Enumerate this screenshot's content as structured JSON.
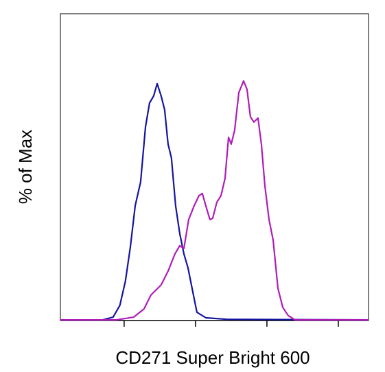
{
  "chart_data": {
    "type": "line",
    "x_label": "CD271 Super Bright 600",
    "y_label": "% of Max",
    "x_scale": "log",
    "xlim": [
      12.8,
      264900
    ],
    "xticks": [
      100,
      1000,
      10000,
      100000
    ],
    "ylim": [
      0,
      100
    ],
    "grid": false,
    "series": [
      {
        "color": "#1414a0",
        "x": [
          12.8,
          50,
          70,
          87,
          104,
          122,
          143,
          170,
          199,
          227,
          259,
          290,
          330,
          369,
          412,
          460,
          526,
          601,
          687,
          784,
          895,
          1045,
          1394,
          2710,
          264900
        ],
        "values": [
          0.2,
          0.2,
          1.1,
          4.9,
          12.8,
          23.9,
          37.4,
          45.2,
          63.1,
          70.9,
          73.2,
          77.2,
          73.2,
          68.7,
          57.5,
          53.0,
          37.4,
          28.4,
          21.7,
          17.2,
          10.5,
          2.7,
          0.9,
          0.4,
          0.2
        ]
      },
      {
        "color": "#b01cb8",
        "x": [
          12.8,
          78,
          136,
          190,
          237,
          330,
          412,
          515,
          601,
          687,
          801,
          957,
          1117,
          1248,
          1394,
          1592,
          1739,
          1987,
          2270,
          2590,
          2896,
          3162,
          3532,
          4036,
          4711,
          5262,
          5875,
          6561,
          7499,
          8375,
          9357,
          10690,
          12210,
          14260,
          16640,
          19860,
          24770,
          264900
        ],
        "values": [
          0.2,
          0.2,
          1.1,
          3.8,
          8.3,
          11.6,
          16.1,
          21.7,
          24.4,
          23.5,
          32.9,
          37.4,
          40.7,
          41.4,
          37.4,
          32.9,
          33.3,
          38.5,
          40.7,
          46.3,
          59.7,
          57.5,
          62.0,
          74.3,
          78.1,
          75.4,
          66.4,
          64.7,
          66.0,
          57.5,
          44.1,
          32.9,
          26.2,
          10.5,
          4.3,
          1.6,
          0.2,
          0.2
        ]
      }
    ]
  }
}
